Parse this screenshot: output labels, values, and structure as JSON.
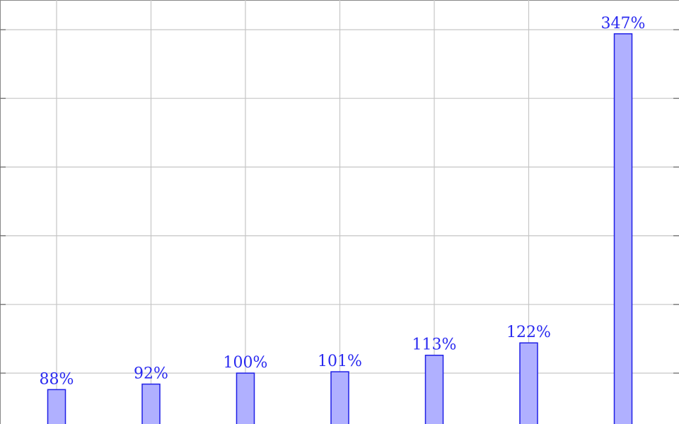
{
  "chart_data": {
    "type": "bar",
    "categories": [
      "",
      "",
      "",
      "",
      "",
      "",
      ""
    ],
    "values": [
      88,
      92,
      100,
      101,
      113,
      122,
      347
    ],
    "value_labels": [
      "88%",
      "92%",
      "100%",
      "101%",
      "113%",
      "122%",
      "347%"
    ],
    "unit": "%",
    "title": "",
    "xlabel": "",
    "ylabel": "",
    "ylim": [
      0,
      350
    ],
    "y_gridlines": [
      100,
      150,
      200,
      250,
      300,
      350
    ],
    "grid": true,
    "legend": "none",
    "colors": {
      "bar_fill": "#b0b0ff",
      "bar_edge": "#1f1fe6",
      "label": "#2a2af0",
      "grid": "#c6c6c6"
    }
  }
}
